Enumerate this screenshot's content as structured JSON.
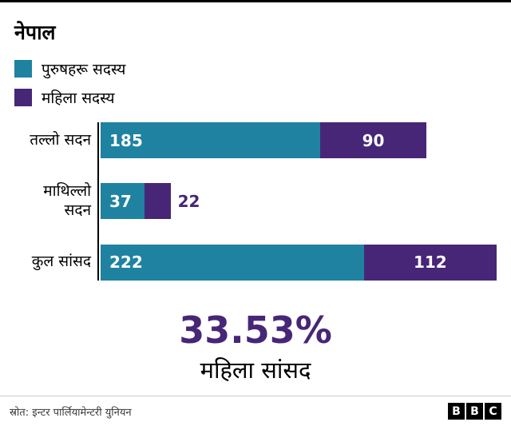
{
  "title": "नेपाल",
  "colors": {
    "male": "#1f82a1",
    "female": "#472677"
  },
  "legend": [
    {
      "label": "पुरुषहरू सदस्य",
      "series": "male"
    },
    {
      "label": "महिला सदस्य",
      "series": "female"
    }
  ],
  "chart_data": {
    "type": "bar",
    "orientation": "horizontal",
    "stacked": true,
    "categories": [
      "तल्लो सदन",
      "माथिल्लो सदन",
      "कुल सांसद"
    ],
    "series": [
      {
        "name": "पुरुषहरू सदस्य",
        "color": "#1f82a1",
        "values": [
          185,
          37,
          222
        ]
      },
      {
        "name": "महिला सदस्य",
        "color": "#472677",
        "values": [
          90,
          22,
          112
        ]
      }
    ],
    "xlim": [
      0,
      334
    ],
    "grid": false,
    "legend_position": "top-left"
  },
  "highlight": {
    "value": "33.53%",
    "label": "महिला सांसद"
  },
  "footer": {
    "source": "स्रोत: इन्टर पार्लियामेन्टरी युनियन",
    "logo": [
      "B",
      "B",
      "C"
    ]
  }
}
